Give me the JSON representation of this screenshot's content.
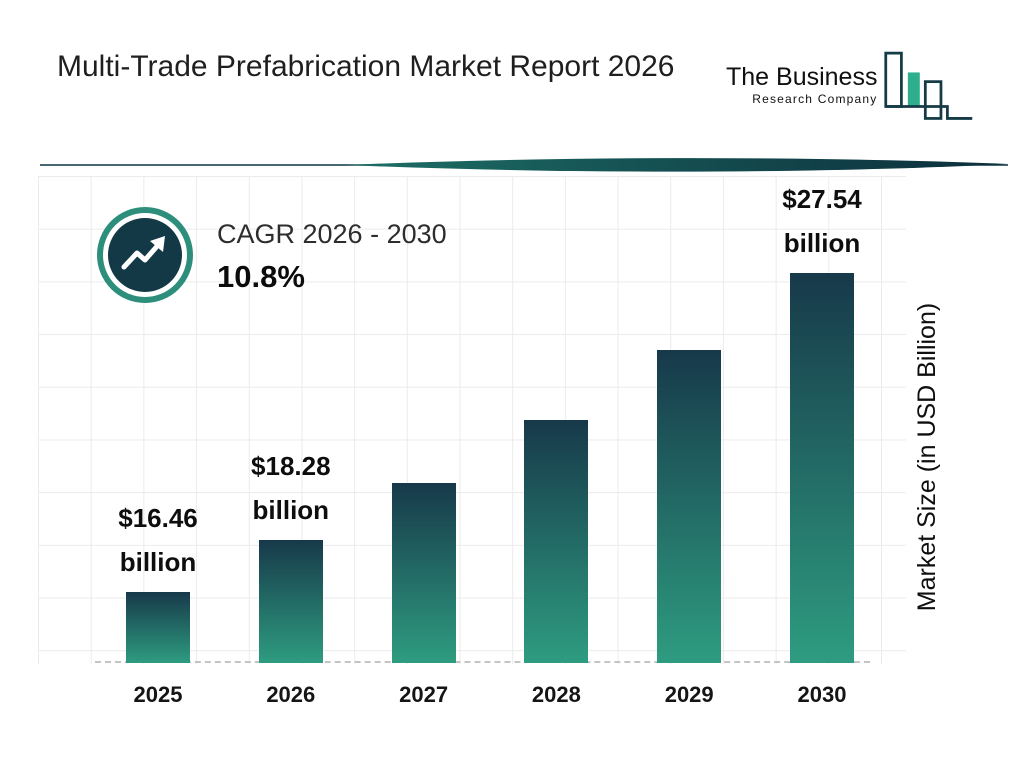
{
  "header": {
    "title": "Multi-Trade Prefabrication Market Report 2026",
    "logo": {
      "line1": "The Business",
      "line2": "Research Company"
    }
  },
  "cagr": {
    "label": "CAGR 2026 - 2030",
    "value": "10.8%"
  },
  "chart_data": {
    "type": "bar",
    "title": "Multi-Trade Prefabrication Market Report 2026",
    "categories": [
      "2025",
      "2026",
      "2027",
      "2028",
      "2029",
      "2030"
    ],
    "values": [
      16.46,
      18.28,
      20.25,
      22.44,
      24.86,
      27.54
    ],
    "value_labels": [
      "$16.46 billion",
      "$18.28 billion",
      null,
      null,
      null,
      "$27.54 billion"
    ],
    "xlabel": "",
    "ylabel": "Market Size (in USD Billion)",
    "ylim": [
      14,
      28
    ],
    "grid": true,
    "legend": "none",
    "bar_gradient": [
      "#17394a",
      "#2e9c80"
    ]
  },
  "colors": {
    "brand_navy": "#123a47",
    "brand_teal": "#2d9b80",
    "logo_teal": "#2fae8e",
    "grid_line": "#ebebeb",
    "dashed_axis": "#c4c4c4",
    "text_dark": "#1f1f1f"
  }
}
